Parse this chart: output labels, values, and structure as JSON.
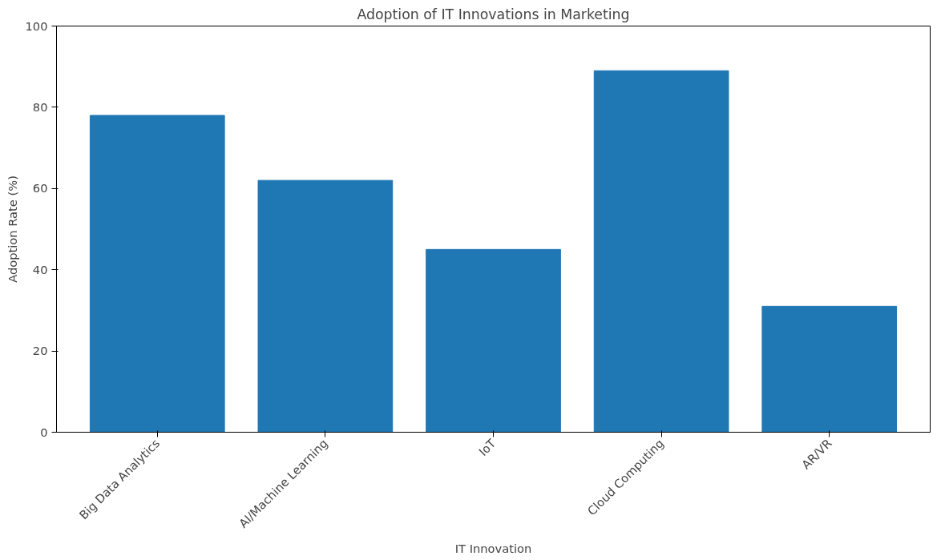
{
  "chart_data": {
    "type": "bar",
    "title": "Adoption of IT Innovations in Marketing",
    "xlabel": "IT Innovation",
    "ylabel": "Adoption Rate (%)",
    "categories": [
      "Big Data Analytics",
      "AI/Machine Learning",
      "IoT",
      "Cloud Computing",
      "AR/VR"
    ],
    "values": [
      78,
      62,
      45,
      89,
      31
    ],
    "color": "#1f77b4",
    "ylim": [
      0,
      100
    ],
    "yticks": [
      0,
      20,
      40,
      60,
      80,
      100
    ],
    "grid": false
  }
}
